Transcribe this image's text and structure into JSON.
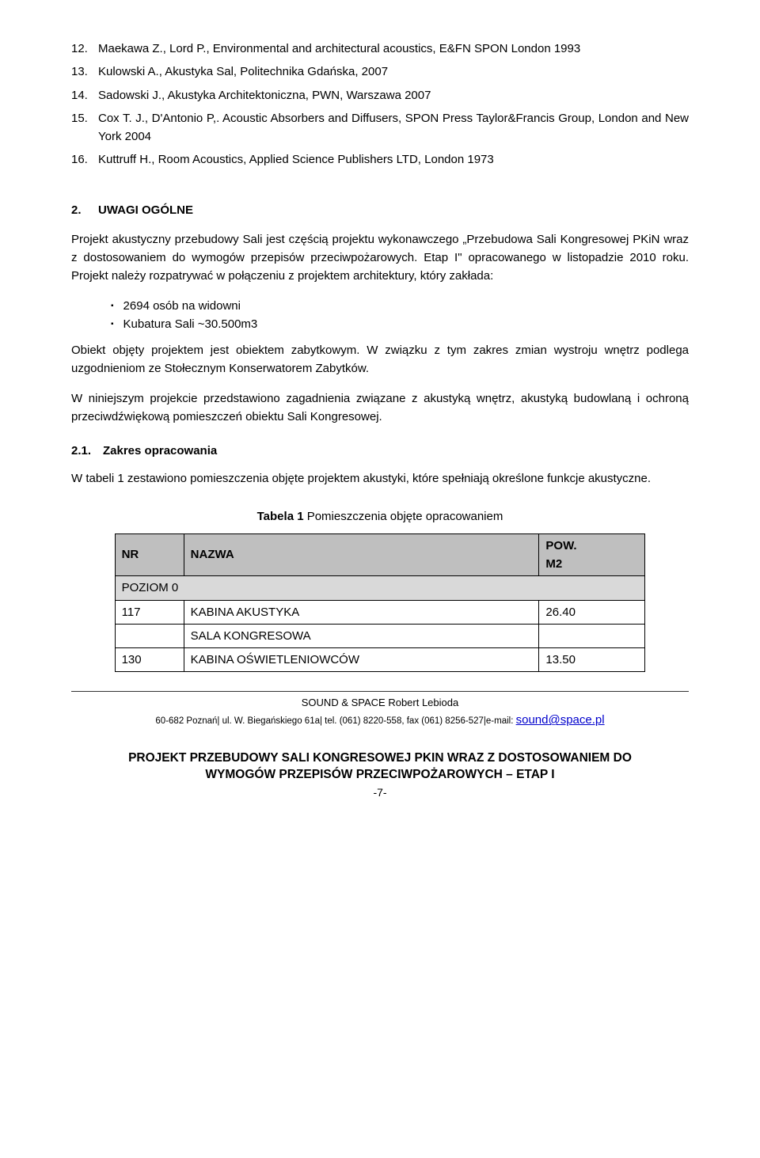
{
  "references": [
    {
      "num": "12.",
      "text": "Maekawa Z., Lord P., Environmental and architectural acoustics, E&FN SPON London 1993"
    },
    {
      "num": "13.",
      "text": "Kulowski A., Akustyka Sal, Politechnika Gdańska, 2007"
    },
    {
      "num": "14.",
      "text": "Sadowski J., Akustyka Architektoniczna, PWN, Warszawa 2007"
    },
    {
      "num": "15.",
      "text": "Cox T. J., D'Antonio P,. Acoustic Absorbers and Diffusers, SPON Press Taylor&Francis Group, London and New York 2004"
    },
    {
      "num": "16.",
      "text": "Kuttruff H., Room Acoustics, Applied Science Publishers LTD, London 1973"
    }
  ],
  "section": {
    "num": "2.",
    "title": "UWAGI OGÓLNE"
  },
  "para1a": "Projekt akustyczny przebudowy Sali jest częścią projektu wykonawczego „Przebudowa Sali Kongresowej PKiN wraz z dostosowaniem do wymogów przepisów przeciwpożarowych. Etap I\" opracowanego w listopadzie 2010 roku. Projekt należy rozpatrywać w połączeniu z projektem architektury, który zakłada:",
  "bullet1": "2694 osób na widowni",
  "bullet2": "Kubatura Sali  ~30.500m3",
  "para1b": "Obiekt objęty projektem jest obiektem zabytkowym. W związku z tym zakres zmian wystroju wnętrz podlega uzgodnieniom ze Stołecznym Konserwatorem Zabytków.",
  "para1c": "W niniejszym projekcie przedstawiono zagadnienia związane z akustyką wnętrz, akustyką budowlaną i ochroną przeciwdźwiękową pomieszczeń obiektu Sali Kongresowej.",
  "subsection": {
    "num": "2.1.",
    "title": "Zakres opracowania"
  },
  "para2": "W tabeli 1 zestawiono pomieszczenia objęte projektem akustyki, które spełniają określone funkcje akustyczne.",
  "table": {
    "caption_label": "Tabela 1",
    "caption_text": " Pomieszczenia objęte opracowaniem",
    "head_nr": "NR",
    "head_name": "NAZWA",
    "head_pow1": "POW.",
    "head_pow2": "M2",
    "section_row": "POZIOM 0",
    "rows": [
      {
        "nr": "117",
        "name": "KABINA AKUSTYKA",
        "pow": "26.40"
      },
      {
        "nr": "",
        "name": "SALA KONGRESOWA",
        "pow": ""
      },
      {
        "nr": "130",
        "name": "KABINA OŚWIETLENIOWCÓW",
        "pow": "13.50"
      }
    ]
  },
  "footer": {
    "line1": "SOUND & SPACE Robert Lebioda",
    "line2_pre": "60-682 Poznań| ul. W. Biegańskiego 61a| tel. (061) 8220-558, fax (061) 8256-527|e-mail: ",
    "email": "sound@space.pl"
  },
  "project_title_l1": "PROJEKT PRZEBUDOWY SALI KONGRESOWEJ PKIN WRAZ Z DOSTOSOWANIEM DO",
  "project_title_l2": "WYMOGÓW PRZEPISÓW PRZECIWPOŻAROWYCH – ETAP I",
  "page_number": "-7-"
}
